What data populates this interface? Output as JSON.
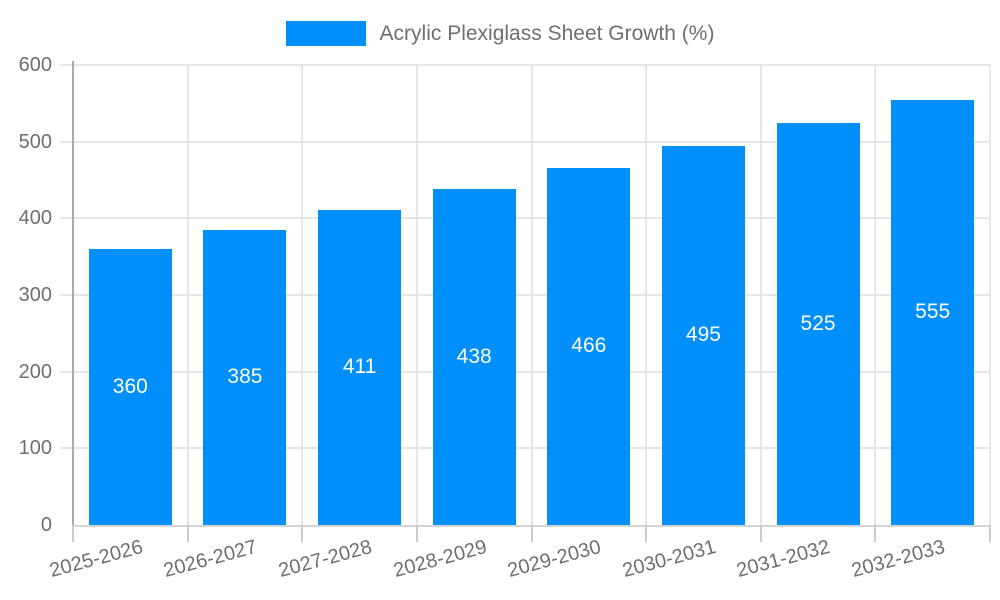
{
  "legend": {
    "label": "Acrylic Plexiglass Sheet Growth (%)"
  },
  "colors": {
    "bar": "#008FFB",
    "grid_line": "#e6e6e6",
    "y_axis_line": "#a9a9a9",
    "x_axis_line": "#d4d4d4",
    "tick_mark": "#cccccc",
    "axis_label_text": "#6f6f6f",
    "value_label_text": "#ffffff",
    "background": "#ffffff"
  },
  "chart_data": {
    "type": "bar",
    "title": "",
    "categories": [
      "2025-2026",
      "2026-2027",
      "2027-2028",
      "2028-2029",
      "2029-2030",
      "2030-2031",
      "2031-2032",
      "2032-2033"
    ],
    "series": [
      {
        "name": "Acrylic Plexiglass Sheet Growth (%)",
        "values": [
          360,
          385,
          411,
          438,
          466,
          495,
          525,
          555
        ]
      }
    ],
    "xlabel": "",
    "ylabel": "",
    "ylim": [
      0,
      600
    ],
    "yticks": [
      0,
      100,
      200,
      300,
      400,
      500,
      600
    ],
    "grid": true,
    "legend_position": "top-center",
    "value_label_position": "inside-center",
    "x_label_rotation_deg": -15
  }
}
